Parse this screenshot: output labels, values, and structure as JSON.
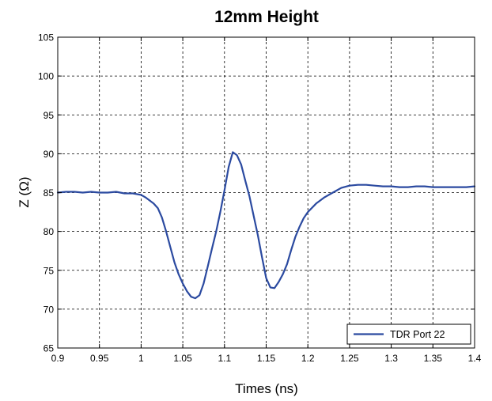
{
  "chart_data": {
    "type": "line",
    "title": "12mm Height",
    "xlabel": "Times (ns)",
    "ylabel": "Z (Ω)",
    "xlim": [
      0.9,
      1.4
    ],
    "ylim": [
      65,
      105
    ],
    "xticks": [
      0.9,
      0.95,
      1,
      1.05,
      1.1,
      1.15,
      1.2,
      1.25,
      1.3,
      1.35,
      1.4
    ],
    "yticks": [
      65,
      70,
      75,
      80,
      85,
      90,
      95,
      100,
      105
    ],
    "xtick_labels": [
      "0.9",
      "0.95",
      "1",
      "1.05",
      "1.1",
      "1.15",
      "1.2",
      "1.25",
      "1.3",
      "1.35",
      "1.4"
    ],
    "ytick_labels": [
      "65",
      "70",
      "75",
      "80",
      "85",
      "90",
      "95",
      "100",
      "105"
    ],
    "grid": true,
    "legend_position": "bottom-right",
    "series": [
      {
        "name": "TDR Port 22",
        "color": "#2b4aa0",
        "x": [
          0.9,
          0.91,
          0.92,
          0.93,
          0.94,
          0.95,
          0.96,
          0.97,
          0.98,
          0.99,
          1.0,
          1.005,
          1.01,
          1.015,
          1.02,
          1.025,
          1.03,
          1.035,
          1.04,
          1.045,
          1.05,
          1.055,
          1.06,
          1.065,
          1.07,
          1.075,
          1.08,
          1.085,
          1.09,
          1.095,
          1.1,
          1.105,
          1.11,
          1.115,
          1.12,
          1.125,
          1.13,
          1.135,
          1.14,
          1.145,
          1.15,
          1.155,
          1.16,
          1.165,
          1.17,
          1.175,
          1.18,
          1.185,
          1.19,
          1.195,
          1.2,
          1.21,
          1.22,
          1.23,
          1.24,
          1.25,
          1.26,
          1.27,
          1.28,
          1.29,
          1.3,
          1.31,
          1.32,
          1.33,
          1.34,
          1.35,
          1.36,
          1.37,
          1.38,
          1.39,
          1.4
        ],
        "y": [
          85.0,
          85.1,
          85.1,
          85.0,
          85.1,
          85.0,
          85.0,
          85.1,
          84.9,
          84.9,
          84.7,
          84.4,
          84.0,
          83.6,
          83.0,
          81.8,
          80.0,
          78.0,
          76.0,
          74.5,
          73.3,
          72.3,
          71.6,
          71.4,
          71.8,
          73.3,
          75.5,
          77.8,
          80.0,
          82.5,
          85.3,
          88.3,
          90.2,
          89.8,
          88.6,
          86.5,
          84.5,
          82.0,
          79.5,
          76.7,
          74.0,
          72.8,
          72.7,
          73.5,
          74.5,
          75.8,
          77.6,
          79.3,
          80.6,
          81.7,
          82.5,
          83.6,
          84.4,
          85.0,
          85.6,
          85.9,
          86.0,
          86.0,
          85.9,
          85.8,
          85.8,
          85.7,
          85.7,
          85.8,
          85.8,
          85.7,
          85.7,
          85.7,
          85.7,
          85.7,
          85.8
        ]
      }
    ]
  }
}
